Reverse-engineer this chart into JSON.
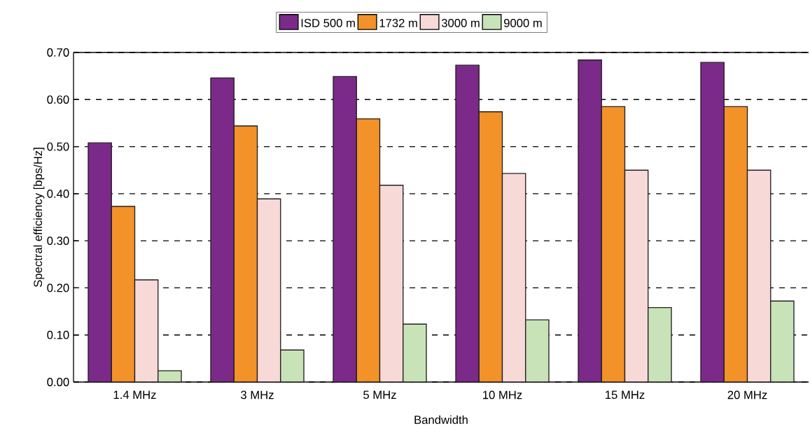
{
  "chart_data": {
    "type": "bar",
    "xlabel": "Bandwidth",
    "ylabel": "Spectral efficiency [bps/Hz]",
    "categories": [
      "1.4 MHz",
      "3 MHz",
      "5 MHz",
      "10 MHz",
      "15 MHz",
      "20 MHz"
    ],
    "series": [
      {
        "name": "ISD 500 m",
        "color": "#7b2a8a",
        "values": [
          0.508,
          0.646,
          0.649,
          0.673,
          0.684,
          0.679
        ]
      },
      {
        "name": "1732 m",
        "color": "#f29229",
        "values": [
          0.373,
          0.544,
          0.559,
          0.574,
          0.585,
          0.585
        ]
      },
      {
        "name": "3000 m",
        "color": "#f7d9d8",
        "values": [
          0.217,
          0.389,
          0.418,
          0.443,
          0.45,
          0.45
        ]
      },
      {
        "name": "9000 m",
        "color": "#c9e3b8",
        "values": [
          0.024,
          0.068,
          0.123,
          0.132,
          0.158,
          0.172
        ]
      }
    ],
    "ylim": [
      0,
      0.7
    ],
    "yticks": [
      {
        "value": 0,
        "label": "0.00"
      },
      {
        "value": 0.1,
        "label": "0.10"
      },
      {
        "value": 0.2,
        "label": "0.20"
      },
      {
        "value": 0.3,
        "label": "0.30"
      },
      {
        "value": 0.4,
        "label": "0.40"
      },
      {
        "value": 0.5,
        "label": "0.50"
      },
      {
        "value": 0.6,
        "label": "0.60"
      },
      {
        "value": 0.7,
        "label": "0.70"
      }
    ],
    "grid": "y",
    "legend": "top"
  }
}
